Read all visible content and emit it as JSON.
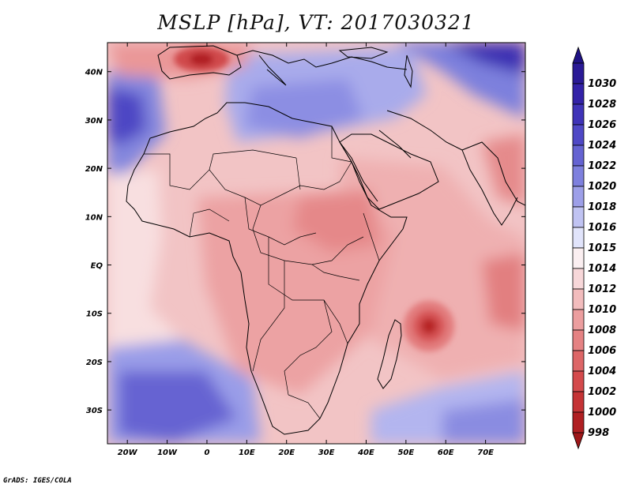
{
  "title": "MSLP [hPa], VT: 2017030321",
  "credit": "GrADS: IGES/COLA",
  "map": {
    "lon_range": [
      -25,
      80
    ],
    "lat_range": [
      -37,
      46
    ],
    "x_ticks": [
      {
        "value": -20,
        "label": "20W"
      },
      {
        "value": -10,
        "label": "10W"
      },
      {
        "value": 0,
        "label": "0"
      },
      {
        "value": 10,
        "label": "10E"
      },
      {
        "value": 20,
        "label": "20E"
      },
      {
        "value": 30,
        "label": "30E"
      },
      {
        "value": 40,
        "label": "40E"
      },
      {
        "value": 50,
        "label": "50E"
      },
      {
        "value": 60,
        "label": "60E"
      },
      {
        "value": 70,
        "label": "70E"
      }
    ],
    "y_ticks": [
      {
        "value": 40,
        "label": "40N"
      },
      {
        "value": 30,
        "label": "30N"
      },
      {
        "value": 20,
        "label": "20N"
      },
      {
        "value": 10,
        "label": "10N"
      },
      {
        "value": 0,
        "label": "EQ"
      },
      {
        "value": -10,
        "label": "10S"
      },
      {
        "value": -20,
        "label": "20S"
      },
      {
        "value": -30,
        "label": "30S"
      }
    ],
    "pressure_features": [
      {
        "kind": "high",
        "lon": -25,
        "lat": 33,
        "value": 1024
      },
      {
        "kind": "high",
        "lon": 75,
        "lat": 44,
        "value": 1028
      },
      {
        "kind": "high",
        "lon": 25,
        "lat": 36,
        "value": 1018
      },
      {
        "kind": "high",
        "lon": -8,
        "lat": -29,
        "value": 1022
      },
      {
        "kind": "high",
        "lon": 60,
        "lat": -33,
        "value": 1017
      },
      {
        "kind": "low",
        "lon": 57,
        "lat": -13,
        "value": 1003
      },
      {
        "kind": "low",
        "lon": 0,
        "lat": 42,
        "value": 1003
      },
      {
        "kind": "low",
        "lon": 30,
        "lat": 12,
        "value": 1008
      },
      {
        "kind": "low",
        "lon": 78,
        "lat": -6,
        "value": 1007
      },
      {
        "kind": "low",
        "lon": 78,
        "lat": 20,
        "value": 1008
      }
    ]
  },
  "colorbar": {
    "levels": [
      {
        "label": "1030",
        "color": "#2a1a96"
      },
      {
        "label": "1028",
        "color": "#3322a8"
      },
      {
        "label": "1026",
        "color": "#3f33b8"
      },
      {
        "label": "1024",
        "color": "#4f48c6"
      },
      {
        "label": "1022",
        "color": "#6563d2"
      },
      {
        "label": "1020",
        "color": "#7e80de"
      },
      {
        "label": "1018",
        "color": "#9d9fe8"
      },
      {
        "label": "1016",
        "color": "#c0c3f2"
      },
      {
        "label": "1015",
        "color": "#e1e4fb"
      },
      {
        "label": "1014",
        "color": "#fbeff1"
      },
      {
        "label": "1012",
        "color": "#f7d7d9"
      },
      {
        "label": "1010",
        "color": "#f2bcbd"
      },
      {
        "label": "1008",
        "color": "#ec9e9f"
      },
      {
        "label": "1006",
        "color": "#e58283"
      },
      {
        "label": "1004",
        "color": "#dd6667"
      },
      {
        "label": "1002",
        "color": "#d44a4c"
      },
      {
        "label": "1000",
        "color": "#c53335"
      },
      {
        "label": "998",
        "color": "#b01f22"
      }
    ],
    "top_color": "#1f1285",
    "bottom_color": "#9e1719"
  }
}
